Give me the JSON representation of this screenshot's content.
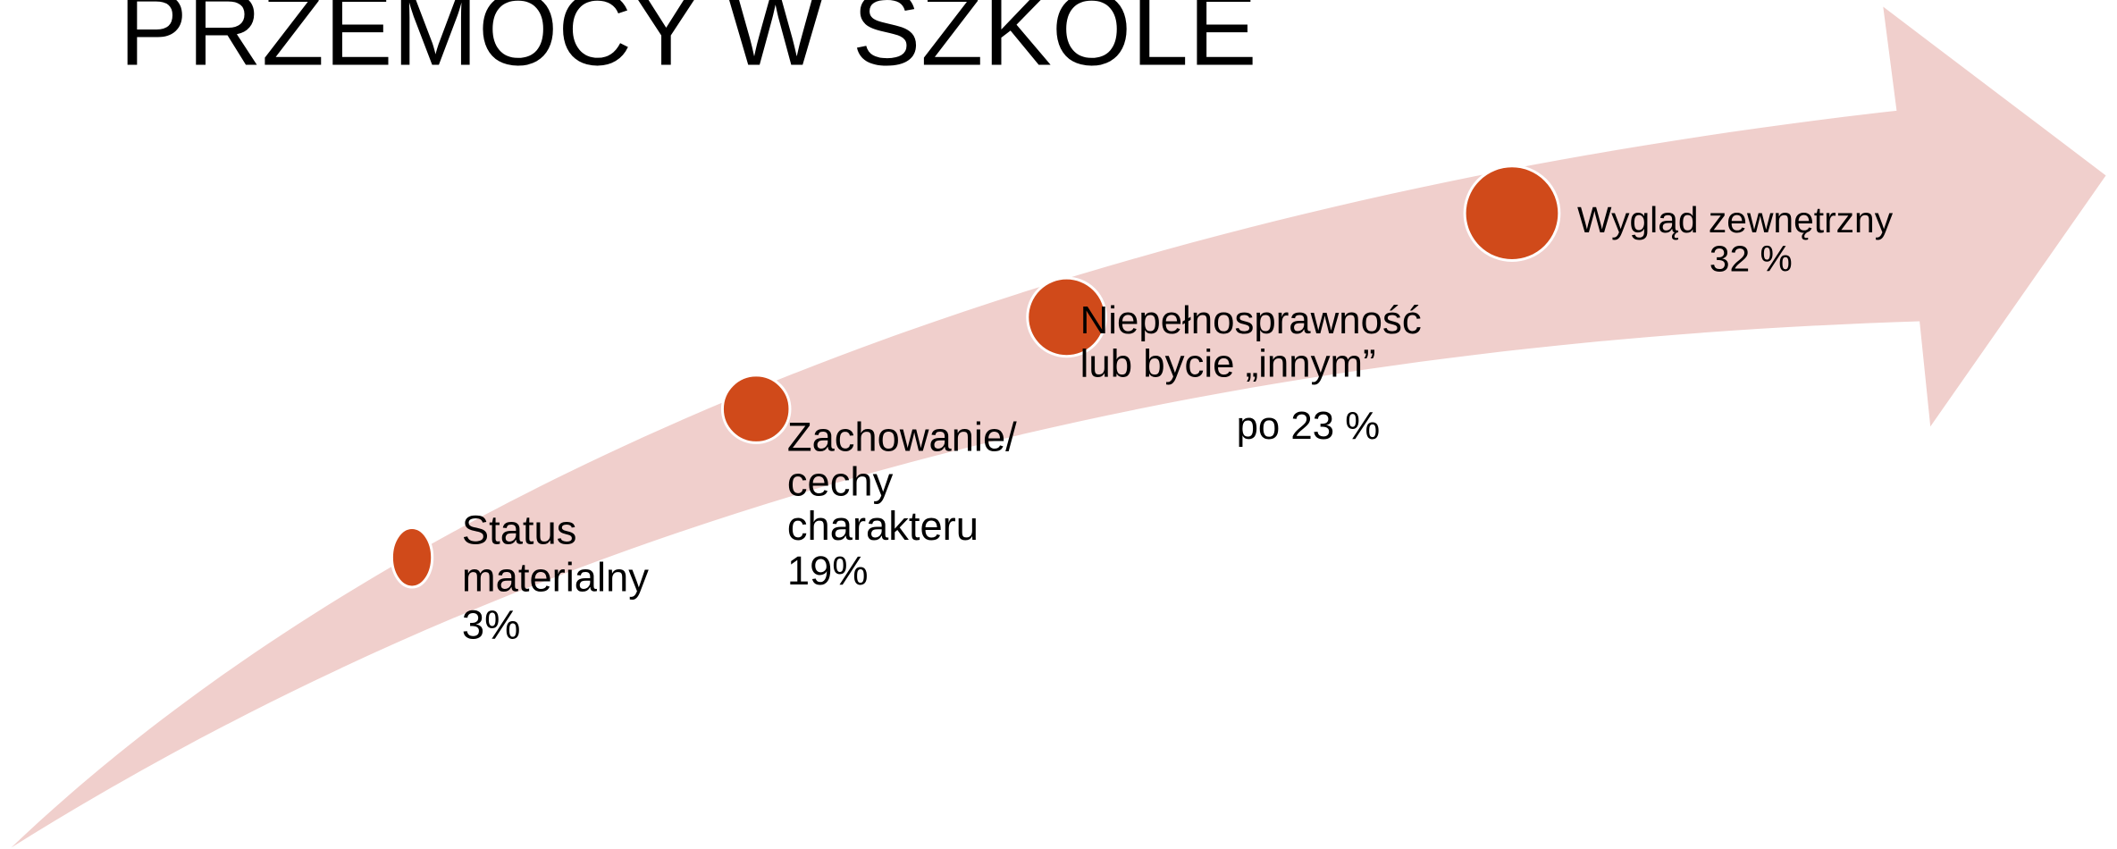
{
  "title": "PRZEMOCY W SZKOLE",
  "items": [
    {
      "lines": [
        "Status",
        "materialny",
        "3%"
      ]
    },
    {
      "lines": [
        "Zachowanie/",
        "cechy",
        "charakteru",
        "19%"
      ]
    },
    {
      "lines": [
        "Niepełnosprawność",
        "lub bycie „innym”"
      ],
      "note": "po 23 %"
    },
    {
      "lines": [
        "Wygląd zewnętrzny",
        "32 %"
      ]
    }
  ]
}
